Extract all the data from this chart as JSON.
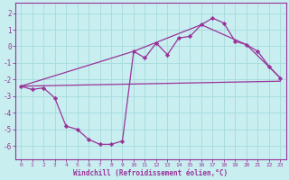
{
  "bg_color": "#c8eef0",
  "grid_color": "#aadde0",
  "line_color": "#993399",
  "xlabel": "Windchill (Refroidissement éolien,°C)",
  "xlabel_color": "#993399",
  "tick_color": "#993399",
  "spine_color": "#993399",
  "ylim": [
    -6.8,
    2.6
  ],
  "xlim": [
    -0.5,
    23.5
  ],
  "yticks": [
    -6,
    -5,
    -4,
    -3,
    -2,
    -1,
    0,
    1,
    2
  ],
  "xticks": [
    0,
    1,
    2,
    3,
    4,
    5,
    6,
    7,
    8,
    9,
    10,
    11,
    12,
    13,
    14,
    15,
    16,
    17,
    18,
    19,
    20,
    21,
    22,
    23
  ],
  "line1_x": [
    0,
    1,
    2,
    3,
    4,
    5,
    6,
    7,
    8,
    9,
    10,
    11,
    12,
    13,
    14,
    15,
    16,
    17,
    18,
    19,
    20,
    21,
    22,
    23
  ],
  "line1_y": [
    -2.4,
    -2.6,
    -2.5,
    -3.1,
    -4.8,
    -5.0,
    -5.6,
    -5.9,
    -5.9,
    -5.7,
    -0.3,
    -0.7,
    0.2,
    -0.5,
    0.5,
    0.6,
    1.3,
    1.7,
    1.4,
    0.3,
    0.1,
    -0.3,
    -1.2,
    -1.9
  ],
  "line2_x": [
    0,
    10,
    16,
    20,
    23
  ],
  "line2_y": [
    -2.4,
    -0.3,
    1.3,
    0.1,
    -1.9
  ],
  "line3_x": [
    0,
    23
  ],
  "line3_y": [
    -2.4,
    -2.1
  ],
  "figwidth": 3.2,
  "figheight": 2.0,
  "dpi": 100
}
